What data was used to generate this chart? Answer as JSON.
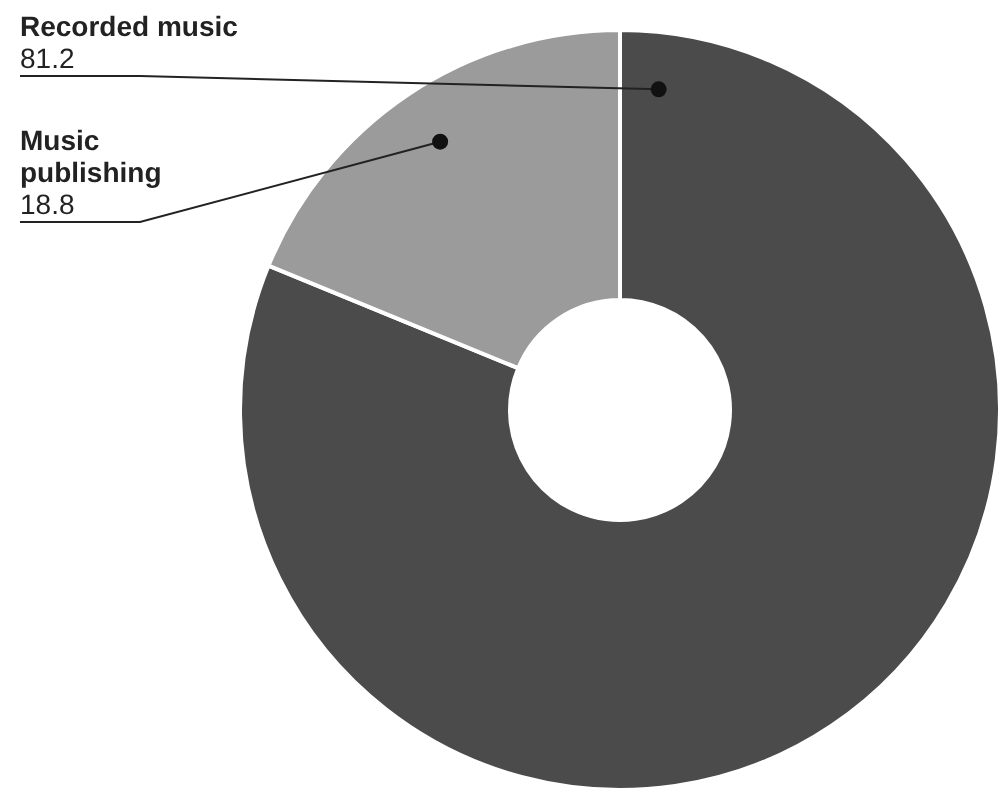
{
  "chart_data": {
    "type": "donut",
    "categories": [
      "Recorded music",
      "Music publishing"
    ],
    "values": [
      81.2,
      18.8
    ],
    "colors": [
      "#4b4b4b",
      "#9b9b9b"
    ],
    "data_labels": true
  }
}
